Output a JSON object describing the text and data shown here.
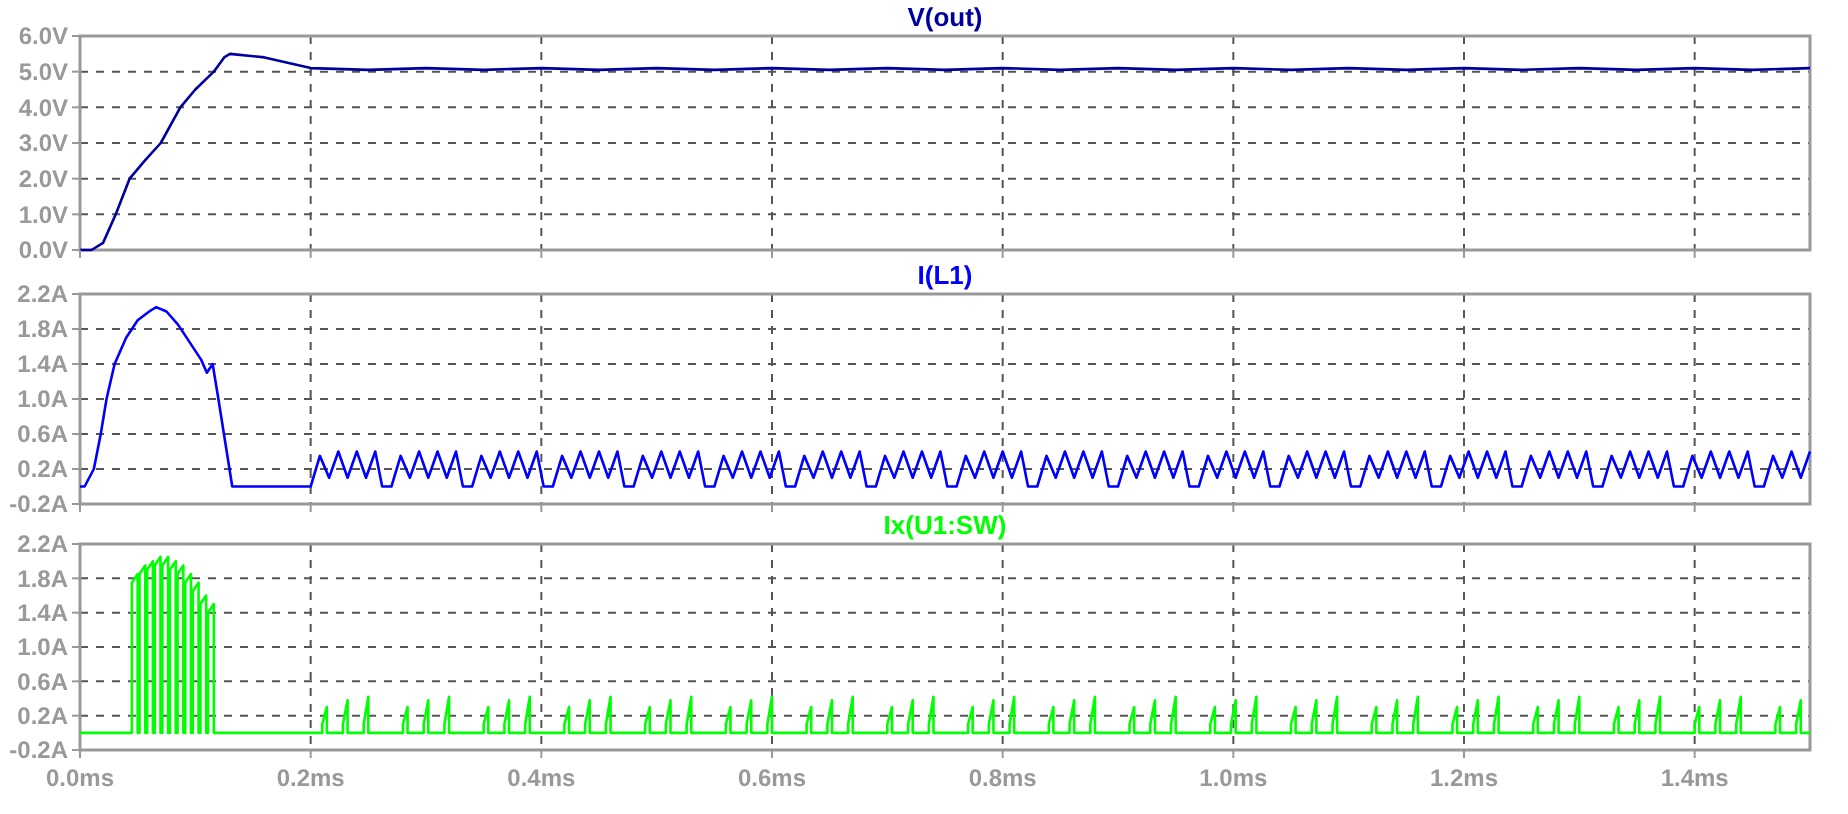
{
  "chart_data": [
    {
      "type": "line",
      "title": "V(out)",
      "xlim": [
        0,
        1.5
      ],
      "ylim": [
        0,
        6
      ],
      "tick_labels": "y",
      "grid": true,
      "line_style": "solid",
      "xticks": [
        {
          "value": 0,
          "label": null
        },
        {
          "value": 0.2,
          "label": null
        },
        {
          "value": 0.4,
          "label": null
        },
        {
          "value": 0.6,
          "label": null
        },
        {
          "value": 0.8,
          "label": null
        },
        {
          "value": 1.0,
          "label": null
        },
        {
          "value": 1.2,
          "label": null
        },
        {
          "value": 1.4,
          "label": null
        }
      ],
      "yticks": [
        {
          "value": 0,
          "label": "0.0V"
        },
        {
          "value": 1,
          "label": "1.0V"
        },
        {
          "value": 2,
          "label": "2.0V"
        },
        {
          "value": 3,
          "label": "3.0V"
        },
        {
          "value": 4,
          "label": "4.0V"
        },
        {
          "value": 5,
          "label": "5.0V"
        },
        {
          "value": 6,
          "label": "6.0V"
        }
      ],
      "series": [
        {
          "color": "#0000a0",
          "x": [
            0,
            0.01,
            0.02,
            0.031,
            0.043,
            0.056,
            0.07,
            0.087,
            0.1,
            0.116,
            0.125,
            0.13,
            0.16,
            0.2,
            0.25,
            0.3,
            0.35,
            0.4,
            0.45,
            0.5,
            0.55,
            0.6,
            0.65,
            0.7,
            0.75,
            0.8,
            0.85,
            0.9,
            0.95,
            1.0,
            1.05,
            1.1,
            1.15,
            1.2,
            1.25,
            1.3,
            1.35,
            1.4,
            1.45,
            1.5
          ],
          "values": [
            0,
            0,
            0.2,
            1.0,
            2.0,
            2.5,
            3.0,
            4.0,
            4.5,
            5.0,
            5.4,
            5.5,
            5.4,
            5.1,
            5.05,
            5.1,
            5.05,
            5.1,
            5.05,
            5.1,
            5.05,
            5.1,
            5.05,
            5.1,
            5.05,
            5.1,
            5.05,
            5.1,
            5.05,
            5.1,
            5.05,
            5.1,
            5.05,
            5.1,
            5.05,
            5.1,
            5.05,
            5.1,
            5.05,
            5.1
          ]
        }
      ]
    },
    {
      "type": "line",
      "title": "I(L1)",
      "xlim": [
        0,
        1.5
      ],
      "ylim": [
        -0.2,
        2.2
      ],
      "tick_labels": "y",
      "grid": true,
      "line_style": "solid",
      "xticks": [
        {
          "value": 0,
          "label": null
        },
        {
          "value": 0.2,
          "label": null
        },
        {
          "value": 0.4,
          "label": null
        },
        {
          "value": 0.6,
          "label": null
        },
        {
          "value": 0.8,
          "label": null
        },
        {
          "value": 1.0,
          "label": null
        },
        {
          "value": 1.2,
          "label": null
        },
        {
          "value": 1.4,
          "label": null
        }
      ],
      "yticks": [
        {
          "value": -0.2,
          "label": "-0.2A"
        },
        {
          "value": 0.2,
          "label": "0.2A"
        },
        {
          "value": 0.6,
          "label": "0.6A"
        },
        {
          "value": 1.0,
          "label": "1.0A"
        },
        {
          "value": 1.4,
          "label": "1.4A"
        },
        {
          "value": 1.8,
          "label": "1.8A"
        },
        {
          "value": 2.2,
          "label": "2.2A"
        }
      ],
      "series": [
        {
          "color": "#0000ff",
          "x": [
            0,
            0.004,
            0.012,
            0.018,
            0.023,
            0.03,
            0.04,
            0.05,
            0.06,
            0.066,
            0.075,
            0.085,
            0.095,
            0.105,
            0.11,
            0.115,
            0.12,
            0.132,
            0.2,
            0.208,
            0.216,
            0.224,
            0.232,
            0.24,
            0.248,
            0.256,
            0.262,
            0.27,
            0.278,
            0.286,
            0.294,
            0.302,
            0.31,
            0.318,
            0.326,
            0.332,
            0.34,
            0.348,
            0.356,
            0.364,
            0.372,
            0.38,
            0.388,
            0.396,
            0.402,
            0.41,
            0.418,
            0.426,
            0.434,
            0.442,
            0.45,
            0.458,
            0.466,
            0.472,
            0.48,
            0.488,
            0.496,
            0.504,
            0.512,
            0.52,
            0.528,
            0.536,
            0.542,
            0.55,
            0.558,
            0.566,
            0.574,
            0.582,
            0.59,
            0.598,
            0.606,
            0.612,
            0.62,
            0.628,
            0.636,
            0.644,
            0.652,
            0.66,
            0.668,
            0.676,
            0.682,
            0.69,
            0.698,
            0.706,
            0.714,
            0.722,
            0.73,
            0.738,
            0.746,
            0.752,
            0.76,
            0.768,
            0.776,
            0.784,
            0.792,
            0.8,
            0.808,
            0.816,
            0.822,
            0.83,
            0.838,
            0.846,
            0.854,
            0.862,
            0.87,
            0.878,
            0.886,
            0.892,
            0.9,
            0.908,
            0.916,
            0.924,
            0.932,
            0.94,
            0.948,
            0.956,
            0.962,
            0.97,
            0.978,
            0.986,
            0.994,
            1.002,
            1.01,
            1.018,
            1.026,
            1.032,
            1.04,
            1.048,
            1.056,
            1.064,
            1.072,
            1.08,
            1.088,
            1.096,
            1.102,
            1.11,
            1.118,
            1.126,
            1.134,
            1.142,
            1.15,
            1.158,
            1.166,
            1.172,
            1.18,
            1.188,
            1.196,
            1.204,
            1.212,
            1.22,
            1.228,
            1.236,
            1.242,
            1.25,
            1.258,
            1.266,
            1.274,
            1.282,
            1.29,
            1.298,
            1.306,
            1.312,
            1.32,
            1.328,
            1.336,
            1.344,
            1.352,
            1.36,
            1.368,
            1.376,
            1.382,
            1.39,
            1.398,
            1.406,
            1.414,
            1.422,
            1.43,
            1.438,
            1.446,
            1.452,
            1.46,
            1.468,
            1.476,
            1.484,
            1.492,
            1.5
          ],
          "values": [
            0,
            0,
            0.2,
            0.6,
            1.0,
            1.4,
            1.7,
            1.9,
            2.0,
            2.05,
            2.0,
            1.85,
            1.65,
            1.45,
            1.3,
            1.4,
            1.0,
            0,
            0,
            0.35,
            0.1,
            0.4,
            0.1,
            0.4,
            0.1,
            0.4,
            0,
            0,
            0.35,
            0.1,
            0.4,
            0.1,
            0.4,
            0.1,
            0.4,
            0,
            0,
            0.35,
            0.1,
            0.4,
            0.1,
            0.4,
            0.1,
            0.4,
            0,
            0,
            0.35,
            0.1,
            0.4,
            0.1,
            0.4,
            0.1,
            0.4,
            0,
            0,
            0.35,
            0.1,
            0.4,
            0.1,
            0.4,
            0.1,
            0.4,
            0,
            0,
            0.35,
            0.1,
            0.4,
            0.1,
            0.4,
            0.1,
            0.4,
            0,
            0,
            0.35,
            0.1,
            0.4,
            0.1,
            0.4,
            0.1,
            0.4,
            0,
            0,
            0.35,
            0.1,
            0.4,
            0.1,
            0.4,
            0.1,
            0.4,
            0,
            0,
            0.35,
            0.1,
            0.4,
            0.1,
            0.4,
            0.1,
            0.4,
            0,
            0,
            0.35,
            0.1,
            0.4,
            0.1,
            0.4,
            0.1,
            0.4,
            0,
            0,
            0.35,
            0.1,
            0.4,
            0.1,
            0.4,
            0.1,
            0.4,
            0,
            0,
            0.35,
            0.1,
            0.4,
            0.1,
            0.4,
            0.1,
            0.4,
            0,
            0,
            0.35,
            0.1,
            0.4,
            0.1,
            0.4,
            0.1,
            0.4,
            0,
            0,
            0.35,
            0.1,
            0.4,
            0.1,
            0.4,
            0.1,
            0.4,
            0,
            0,
            0.35,
            0.1,
            0.4,
            0.1,
            0.4,
            0.1,
            0.4,
            0,
            0,
            0.35,
            0.1,
            0.4,
            0.1,
            0.4,
            0.1,
            0.4,
            0,
            0,
            0.35,
            0.1,
            0.4,
            0.1,
            0.4,
            0.1,
            0.4,
            0,
            0,
            0.35,
            0.1,
            0.4,
            0.1,
            0.4,
            0.1,
            0.4,
            0,
            0,
            0.35,
            0.1,
            0.4,
            0.1,
            0.4
          ]
        }
      ]
    },
    {
      "type": "line",
      "title": "Ix(U1:SW)",
      "xlim": [
        0,
        1.5
      ],
      "ylim": [
        -0.2,
        2.2
      ],
      "grid": true,
      "line_style": "solid",
      "xticks": [
        {
          "value": 0,
          "label": "0.0ms"
        },
        {
          "value": 0.2,
          "label": "0.2ms"
        },
        {
          "value": 0.4,
          "label": "0.4ms"
        },
        {
          "value": 0.6,
          "label": "0.6ms"
        },
        {
          "value": 0.8,
          "label": "0.8ms"
        },
        {
          "value": 1.0,
          "label": "1.0ms"
        },
        {
          "value": 1.2,
          "label": "1.2ms"
        },
        {
          "value": 1.4,
          "label": "1.4ms"
        }
      ],
      "yticks": [
        {
          "value": -0.2,
          "label": "-0.2A"
        },
        {
          "value": 0.2,
          "label": "0.2A"
        },
        {
          "value": 0.6,
          "label": "0.6A"
        },
        {
          "value": 1.0,
          "label": "1.0A"
        },
        {
          "value": 1.4,
          "label": "1.4A"
        },
        {
          "value": 1.8,
          "label": "1.8A"
        },
        {
          "value": 2.2,
          "label": "2.2A"
        }
      ],
      "series": [
        {
          "color": "#00ff00",
          "x": [
            0,
            0.045,
            0.045,
            0.05,
            0.05,
            0.0516,
            0.0516,
            0.0566,
            0.0566,
            0.0582,
            0.0582,
            0.0632,
            0.0632,
            0.0648,
            0.0648,
            0.0698,
            0.0698,
            0.0714,
            0.0714,
            0.0764,
            0.0764,
            0.078,
            0.078,
            0.083,
            0.083,
            0.0846,
            0.0846,
            0.0896,
            0.0896,
            0.0912,
            0.0912,
            0.0962,
            0.0962,
            0.0978,
            0.0978,
            0.1028,
            0.1028,
            0.1044,
            0.1044,
            0.1094,
            0.1094,
            0.111,
            0.111,
            0.116,
            0.116,
            0.21,
            0.21,
            0.214,
            0.214,
            0.228,
            0.228,
            0.232,
            0.232,
            0.246,
            0.246,
            0.25,
            0.25,
            0.28,
            0.28,
            0.284,
            0.284,
            0.298,
            0.298,
            0.302,
            0.302,
            0.316,
            0.316,
            0.32,
            0.32,
            0.35,
            0.35,
            0.354,
            0.354,
            0.368,
            0.368,
            0.372,
            0.372,
            0.386,
            0.386,
            0.39,
            0.39,
            0.42,
            0.42,
            0.424,
            0.424,
            0.438,
            0.438,
            0.442,
            0.442,
            0.456,
            0.456,
            0.46,
            0.46,
            0.49,
            0.49,
            0.494,
            0.494,
            0.508,
            0.508,
            0.512,
            0.512,
            0.526,
            0.526,
            0.53,
            0.53,
            0.56,
            0.56,
            0.564,
            0.564,
            0.578,
            0.578,
            0.582,
            0.582,
            0.596,
            0.596,
            0.6,
            0.6,
            0.63,
            0.63,
            0.634,
            0.634,
            0.648,
            0.648,
            0.652,
            0.652,
            0.666,
            0.666,
            0.67,
            0.67,
            0.7,
            0.7,
            0.704,
            0.704,
            0.718,
            0.718,
            0.722,
            0.722,
            0.736,
            0.736,
            0.74,
            0.74,
            0.77,
            0.77,
            0.774,
            0.774,
            0.788,
            0.788,
            0.792,
            0.792,
            0.806,
            0.806,
            0.81,
            0.81,
            0.84,
            0.84,
            0.844,
            0.844,
            0.858,
            0.858,
            0.862,
            0.862,
            0.876,
            0.876,
            0.88,
            0.88,
            0.91,
            0.91,
            0.914,
            0.914,
            0.928,
            0.928,
            0.932,
            0.932,
            0.946,
            0.946,
            0.95,
            0.95,
            0.98,
            0.98,
            0.984,
            0.984,
            0.998,
            0.998,
            1.002,
            1.002,
            1.016,
            1.016,
            1.02,
            1.02,
            1.05,
            1.05,
            1.054,
            1.054,
            1.068,
            1.068,
            1.072,
            1.072,
            1.086,
            1.086,
            1.09,
            1.09,
            1.12,
            1.12,
            1.124,
            1.124,
            1.138,
            1.138,
            1.142,
            1.142,
            1.156,
            1.156,
            1.16,
            1.16,
            1.19,
            1.19,
            1.194,
            1.194,
            1.208,
            1.208,
            1.212,
            1.212,
            1.226,
            1.226,
            1.23,
            1.23,
            1.26,
            1.26,
            1.264,
            1.264,
            1.278,
            1.278,
            1.282,
            1.282,
            1.296,
            1.296,
            1.3,
            1.3,
            1.33,
            1.33,
            1.334,
            1.334,
            1.348,
            1.348,
            1.352,
            1.352,
            1.366,
            1.366,
            1.37,
            1.37,
            1.4,
            1.4,
            1.404,
            1.404,
            1.418,
            1.418,
            1.422,
            1.422,
            1.436,
            1.436,
            1.44,
            1.44,
            1.47,
            1.47,
            1.474,
            1.474,
            1.488,
            1.488,
            1.492,
            1.492,
            1.5
          ],
          "values": [
            0,
            0,
            1.75,
            1.85,
            0,
            0,
            1.85,
            1.95,
            0,
            0,
            1.9,
            2.0,
            0,
            0,
            1.95,
            2.05,
            0,
            0,
            1.95,
            2.05,
            0,
            0,
            1.9,
            2.0,
            0,
            0,
            1.85,
            1.95,
            0,
            0,
            1.75,
            1.85,
            0,
            0,
            1.65,
            1.75,
            0,
            0,
            1.5,
            1.6,
            0,
            0,
            1.4,
            1.5,
            0,
            0,
            0.1,
            0.3,
            0,
            0,
            0.1,
            0.38,
            0,
            0,
            0.1,
            0.42,
            0,
            0,
            0.1,
            0.3,
            0,
            0,
            0.1,
            0.38,
            0,
            0,
            0.1,
            0.42,
            0,
            0,
            0.1,
            0.3,
            0,
            0,
            0.1,
            0.38,
            0,
            0,
            0.1,
            0.42,
            0,
            0,
            0.1,
            0.3,
            0,
            0,
            0.1,
            0.38,
            0,
            0,
            0.1,
            0.42,
            0,
            0,
            0.1,
            0.3,
            0,
            0,
            0.1,
            0.38,
            0,
            0,
            0.1,
            0.42,
            0,
            0,
            0.1,
            0.3,
            0,
            0,
            0.1,
            0.38,
            0,
            0,
            0.1,
            0.42,
            0,
            0,
            0.1,
            0.3,
            0,
            0,
            0.1,
            0.38,
            0,
            0,
            0.1,
            0.42,
            0,
            0,
            0.1,
            0.3,
            0,
            0,
            0.1,
            0.38,
            0,
            0,
            0.1,
            0.42,
            0,
            0,
            0.1,
            0.3,
            0,
            0,
            0.1,
            0.38,
            0,
            0,
            0.1,
            0.42,
            0,
            0,
            0.1,
            0.3,
            0,
            0,
            0.1,
            0.38,
            0,
            0,
            0.1,
            0.42,
            0,
            0,
            0.1,
            0.3,
            0,
            0,
            0.1,
            0.38,
            0,
            0,
            0.1,
            0.42,
            0,
            0,
            0.1,
            0.3,
            0,
            0,
            0.1,
            0.38,
            0,
            0,
            0.1,
            0.42,
            0,
            0,
            0.1,
            0.3,
            0,
            0,
            0.1,
            0.38,
            0,
            0,
            0.1,
            0.42,
            0,
            0,
            0.1,
            0.3,
            0,
            0,
            0.1,
            0.38,
            0,
            0,
            0.1,
            0.42,
            0,
            0,
            0.1,
            0.3,
            0,
            0,
            0.1,
            0.38,
            0,
            0,
            0.1,
            0.42,
            0,
            0,
            0.1,
            0.3,
            0,
            0,
            0.1,
            0.38,
            0,
            0,
            0.1,
            0.42,
            0,
            0,
            0.1,
            0.3,
            0,
            0,
            0.1,
            0.38,
            0,
            0,
            0.1,
            0.42,
            0,
            0,
            0.1,
            0.3,
            0,
            0,
            0.1,
            0.38,
            0,
            0,
            0.1,
            0.42,
            0,
            0,
            0.1,
            0.3,
            0,
            0,
            0.1,
            0.38,
            0,
            0
          ]
        }
      ]
    }
  ]
}
